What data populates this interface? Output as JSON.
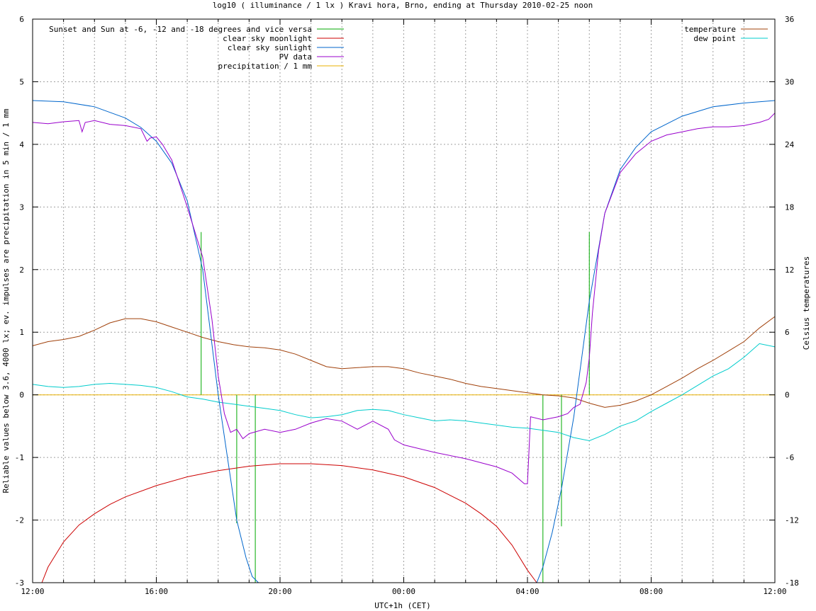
{
  "chart_data": {
    "type": "line",
    "title": "log10 ( illuminance / 1 lx ) Kravi hora, Brno, ending at Thursday 2010-02-25 noon",
    "xlabel": "UTC+1h (CET)",
    "ylabel": "Reliable values below 3.6, 4000 lx; ev. impulses are precipitation in 5 min / 1 mm",
    "y2label": "Celsius temperatures",
    "xlim": [
      0,
      24
    ],
    "ylim": [
      -3,
      6
    ],
    "y2lim": [
      -18,
      36
    ],
    "x_ticks": [
      {
        "value": 0,
        "label": "12:00"
      },
      {
        "value": 4,
        "label": "16:00"
      },
      {
        "value": 8,
        "label": "20:00"
      },
      {
        "value": 12,
        "label": "00:00"
      },
      {
        "value": 16,
        "label": "04:00"
      },
      {
        "value": 20,
        "label": "08:00"
      },
      {
        "value": 24,
        "label": "12:00"
      }
    ],
    "y_ticks": [
      -3,
      -2,
      -1,
      0,
      1,
      2,
      3,
      4,
      5,
      6
    ],
    "y2_ticks": [
      -18,
      -12,
      -6,
      0,
      6,
      12,
      18,
      24,
      30,
      36
    ],
    "grid": true,
    "legend_left": [
      {
        "name": "Sunset and Sun at -6, -12 and -18 degrees and vice versa",
        "color": "#00aa00"
      },
      {
        "name": "clear sky moonlight",
        "color": "#cc0000"
      },
      {
        "name": "clear sky sunlight",
        "color": "#0066cc"
      },
      {
        "name": "PV data",
        "color": "#9900cc"
      },
      {
        "name": "precipitation / 1 mm",
        "color": "#e8b000"
      }
    ],
    "legend_right": [
      {
        "name": "temperature",
        "color": "#a0400a"
      },
      {
        "name": "dew point",
        "color": "#00cccc"
      }
    ],
    "series": [
      {
        "name": "Sunset and Sun at -6, -12 and -18 degrees and vice versa",
        "type": "impulse",
        "color": "#00aa00",
        "x": [
          5.45,
          6.0,
          6.6,
          7.2,
          16.5,
          17.1,
          18.0
        ],
        "y": [
          2.6,
          0.0,
          -2.05,
          -3.0,
          -3.0,
          -2.1,
          2.6
        ]
      },
      {
        "name": "clear sky moonlight",
        "color": "#cc0000",
        "x": [
          0.3,
          0.5,
          1,
          1.5,
          2,
          2.5,
          3,
          4,
          5,
          6,
          7,
          8,
          9,
          10,
          11,
          12,
          13,
          14,
          14.5,
          15,
          15.5,
          16,
          16.3
        ],
        "y": [
          -3.0,
          -2.75,
          -2.35,
          -2.08,
          -1.9,
          -1.75,
          -1.63,
          -1.45,
          -1.31,
          -1.21,
          -1.14,
          -1.1,
          -1.1,
          -1.13,
          -1.2,
          -1.31,
          -1.48,
          -1.73,
          -1.9,
          -2.1,
          -2.4,
          -2.8,
          -3.0
        ]
      },
      {
        "name": "clear sky sunlight",
        "color": "#0066cc",
        "x": [
          0,
          1,
          2,
          3,
          3.5,
          4,
          4.5,
          5,
          5.5,
          6.0,
          6.3,
          6.6,
          6.9,
          7.1,
          7.3,
          16.3,
          16.5,
          16.8,
          17.1,
          17.5,
          18,
          18.5,
          19,
          19.5,
          20,
          21,
          22,
          23,
          24
        ],
        "y": [
          4.7,
          4.68,
          4.6,
          4.42,
          4.27,
          4.05,
          3.7,
          3.1,
          2.0,
          0.0,
          -1.0,
          -2.0,
          -2.6,
          -2.9,
          -3.0,
          -3.0,
          -2.75,
          -2.2,
          -1.5,
          -0.35,
          1.5,
          2.9,
          3.6,
          3.95,
          4.2,
          4.45,
          4.6,
          4.66,
          4.7
        ]
      },
      {
        "name": "PV data",
        "color": "#9900cc",
        "x": [
          0,
          0.5,
          1,
          1.5,
          1.6,
          1.7,
          2,
          2.5,
          3,
          3.5,
          3.7,
          3.8,
          4,
          4.2,
          4.5,
          5,
          5.5,
          5.8,
          6.0,
          6.2,
          6.4,
          6.6,
          6.8,
          7,
          7.5,
          8,
          8.5,
          9,
          9.5,
          10,
          10.5,
          11,
          11.5,
          11.7,
          12,
          13,
          14,
          15,
          15.5,
          15.9,
          16.0,
          16.1,
          16.5,
          17,
          17.3,
          17.5,
          17.7,
          17.9,
          18.0,
          18.1,
          18.3,
          18.5,
          19,
          19.5,
          20,
          20.5,
          21,
          21.5,
          22,
          22.5,
          23,
          23.5,
          23.8,
          24
        ],
        "y": [
          4.35,
          4.33,
          4.36,
          4.38,
          4.2,
          4.35,
          4.38,
          4.32,
          4.3,
          4.25,
          4.05,
          4.1,
          4.12,
          4.0,
          3.75,
          3.0,
          2.2,
          1.2,
          0.3,
          -0.3,
          -0.6,
          -0.55,
          -0.7,
          -0.62,
          -0.55,
          -0.6,
          -0.55,
          -0.45,
          -0.38,
          -0.42,
          -0.55,
          -0.42,
          -0.55,
          -0.72,
          -0.8,
          -0.92,
          -1.02,
          -1.15,
          -1.25,
          -1.42,
          -1.42,
          -0.35,
          -0.4,
          -0.35,
          -0.3,
          -0.2,
          -0.15,
          0.2,
          0.6,
          1.3,
          2.3,
          2.9,
          3.55,
          3.85,
          4.05,
          4.15,
          4.2,
          4.25,
          4.28,
          4.28,
          4.3,
          4.35,
          4.4,
          4.5
        ]
      },
      {
        "name": "precipitation / 1 mm",
        "color": "#e8b000",
        "x": [
          0,
          24
        ],
        "y": [
          0,
          0
        ]
      },
      {
        "name": "temperature",
        "axis": "y2",
        "color": "#a0400a",
        "x": [
          0,
          0.5,
          1,
          1.5,
          2,
          2.5,
          3,
          3.5,
          4,
          4.5,
          5,
          5.5,
          6,
          6.5,
          7,
          7.5,
          8,
          8.5,
          9,
          9.5,
          10,
          10.5,
          11,
          11.5,
          12,
          12.5,
          13,
          13.5,
          14,
          14.5,
          15,
          15.5,
          16,
          16.5,
          17,
          17.5,
          18,
          18.5,
          19,
          19.5,
          20,
          20.5,
          21,
          21.5,
          22,
          22.5,
          23,
          23.5,
          24
        ],
        "y": [
          4.7,
          5.1,
          5.3,
          5.6,
          6.2,
          6.9,
          7.3,
          7.3,
          7.0,
          6.5,
          6.0,
          5.5,
          5.1,
          4.8,
          4.6,
          4.5,
          4.3,
          3.9,
          3.3,
          2.7,
          2.5,
          2.6,
          2.7,
          2.7,
          2.5,
          2.1,
          1.8,
          1.5,
          1.1,
          0.8,
          0.6,
          0.4,
          0.2,
          0.0,
          -0.1,
          -0.3,
          -0.8,
          -1.2,
          -1.0,
          -0.6,
          0.0,
          0.8,
          1.6,
          2.5,
          3.3,
          4.2,
          5.1,
          6.4,
          7.5
        ]
      },
      {
        "name": "dew point",
        "axis": "y2",
        "color": "#00cccc",
        "x": [
          0,
          0.5,
          1,
          1.5,
          2,
          2.5,
          3,
          3.5,
          4,
          4.5,
          5,
          5.5,
          6,
          6.5,
          7,
          7.5,
          8,
          8.5,
          9,
          9.5,
          10,
          10.5,
          11,
          11.5,
          12,
          12.5,
          13,
          13.5,
          14,
          14.5,
          15,
          15.5,
          16,
          16.5,
          17,
          17.5,
          18,
          18.5,
          19,
          19.5,
          20,
          20.5,
          21,
          21.5,
          22,
          22.5,
          23,
          23.5,
          24
        ],
        "y": [
          1.0,
          0.8,
          0.7,
          0.8,
          1.0,
          1.1,
          1.0,
          0.9,
          0.7,
          0.3,
          -0.2,
          -0.4,
          -0.7,
          -0.9,
          -1.1,
          -1.3,
          -1.5,
          -1.9,
          -2.2,
          -2.1,
          -1.9,
          -1.5,
          -1.4,
          -1.5,
          -1.9,
          -2.2,
          -2.5,
          -2.4,
          -2.5,
          -2.7,
          -2.9,
          -3.1,
          -3.2,
          -3.4,
          -3.6,
          -4.1,
          -4.4,
          -3.8,
          -3.0,
          -2.5,
          -1.6,
          -0.8,
          0.0,
          0.9,
          1.8,
          2.5,
          3.6,
          4.9,
          4.6
        ]
      }
    ]
  }
}
